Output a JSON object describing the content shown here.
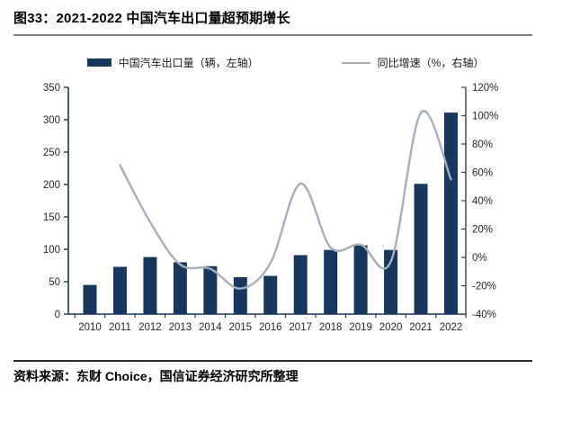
{
  "figure": {
    "title": "图33：2021-2022 中国汽车出口量超预期增长",
    "source": "资料来源：东财 Choice，国信证券经济研究所整理"
  },
  "colors": {
    "bar": "#17375E",
    "line": "#A6AEBB",
    "axis_left": "#17375E",
    "axis_right": "#404040",
    "tick_label": "#262626",
    "title_rule": "#7f7f7f",
    "source_rule": "#2b2b2b"
  },
  "chart_data": {
    "type": "bar",
    "subtype": "combo-bar-line-dual-axis",
    "title": "图33：2021-2022 中国汽车出口量超预期增长",
    "categories": [
      "2010",
      "2011",
      "2012",
      "2013",
      "2014",
      "2015",
      "2016",
      "2017",
      "2018",
      "2019",
      "2020",
      "2021",
      "2022"
    ],
    "series": [
      {
        "name": "中国汽车出口量（辆，左轴）",
        "type": "bar",
        "axis": "left",
        "color": "#17375E",
        "values": [
          45,
          73,
          88,
          80,
          74,
          57,
          59,
          91,
          99,
          106,
          99,
          201,
          311
        ]
      },
      {
        "name": "同比增速（%，右轴）",
        "type": "line",
        "axis": "right",
        "color": "#A6AEBB",
        "values": [
          null,
          65,
          25,
          -5,
          -8,
          -22,
          -4,
          52,
          7,
          9,
          -3,
          102,
          55
        ]
      }
    ],
    "left_axis": {
      "min": 0,
      "max": 350,
      "step": 50,
      "label_suffix": ""
    },
    "right_axis": {
      "min": -40,
      "max": 120,
      "step": 20,
      "label_suffix": "%"
    },
    "legend_position": "top",
    "grid": false,
    "smooth_line": true
  }
}
